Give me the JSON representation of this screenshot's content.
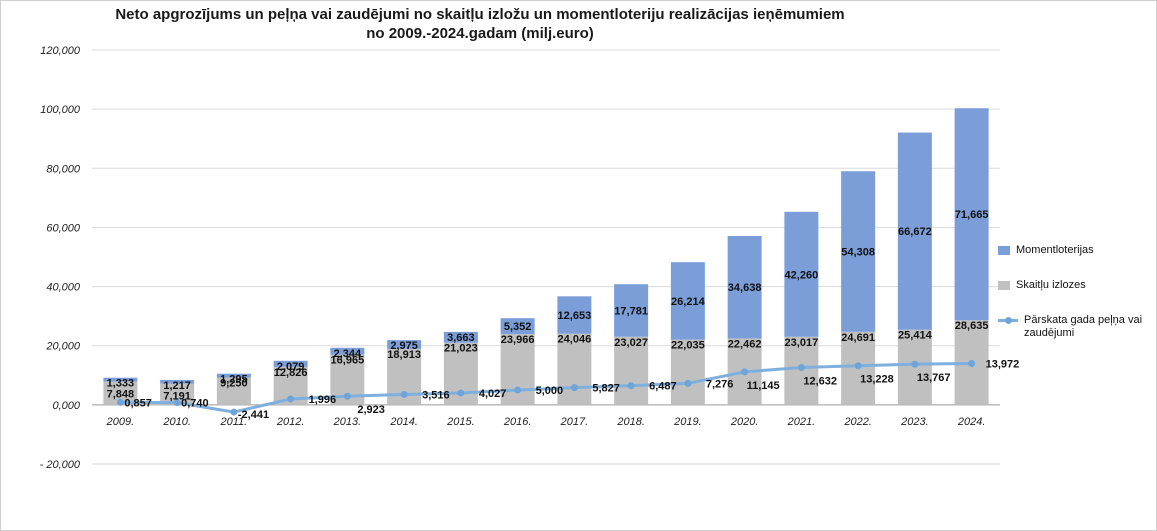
{
  "chart_data": {
    "type": "bar",
    "title_line1": "Neto apgrozījums un peļņa vai zaudējumi no skaitļu izložu un momentloteriju realizācijas ieņēmumiem",
    "title_line2": "no 2009.-2024.gadam (milj.euro)",
    "categories": [
      "2009.",
      "2010.",
      "2011.",
      "2012.",
      "2013.",
      "2014.",
      "2015.",
      "2016.",
      "2017.",
      "2018.",
      "2019.",
      "2020.",
      "2021.",
      "2022.",
      "2023.",
      "2024."
    ],
    "ylim": [
      -20,
      120
    ],
    "yticks": [
      -20,
      0,
      20,
      40,
      60,
      80,
      100,
      120
    ],
    "ytick_labels": [
      "- 20,000",
      "0,000",
      "20,000",
      "40,000",
      "60,000",
      "80,000",
      "100,000",
      "120,000"
    ],
    "grid": true,
    "legend_position": "right",
    "series": [
      {
        "name": "Skaitļu izlozes",
        "kind": "bar",
        "color": "#c0c0c0",
        "values": [
          7.848,
          7.191,
          9.25,
          12.826,
          16.965,
          18.913,
          21.023,
          23.966,
          24.046,
          23.027,
          22.035,
          22.462,
          23.017,
          24.691,
          25.414,
          28.635
        ],
        "labels": [
          "7,848",
          "7,191",
          "9,250",
          "12,826",
          "16,965",
          "18,913",
          "21,023",
          "23,966",
          "24,046",
          "23,027",
          "22,035",
          "22,462",
          "23,017",
          "24,691",
          "25,414",
          "28,635"
        ]
      },
      {
        "name": "Momentloterijas",
        "kind": "bar",
        "color": "#7b9ed9",
        "values": [
          1.333,
          1.217,
          1.295,
          2.079,
          2.344,
          2.975,
          3.663,
          5.352,
          12.653,
          17.781,
          26.214,
          34.638,
          42.26,
          54.308,
          66.672,
          71.665
        ],
        "labels": [
          "1,333",
          "1,217",
          "1,295",
          "2,079",
          "2,344",
          "2,975",
          "3,663",
          "5,352",
          "12,653",
          "17,781",
          "26,214",
          "34,638",
          "42,260",
          "54,308",
          "66,672",
          "71,665"
        ]
      },
      {
        "name": "Pārskata gada peļņa vai zaudējumi",
        "kind": "line",
        "color": "#7fb0dd",
        "values": [
          0.857,
          0.74,
          -2.441,
          1.996,
          2.923,
          3.516,
          4.027,
          5.0,
          5.827,
          6.487,
          7.276,
          11.145,
          12.632,
          13.228,
          13.767,
          13.972
        ],
        "labels": [
          "0,857",
          "0,740",
          "-2,441",
          "1,996",
          "2,923",
          "3,516",
          "4,027",
          "5,000",
          "5,827",
          "6,487",
          "7,276",
          "11,145",
          "12,632",
          "13,228",
          "13,767",
          "13,972"
        ]
      }
    ]
  }
}
